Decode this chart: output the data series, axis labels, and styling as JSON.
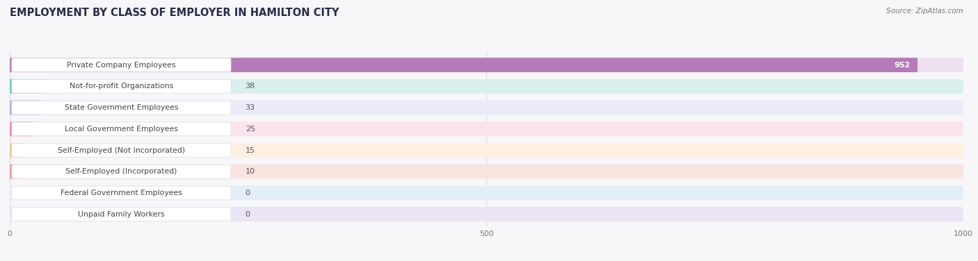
{
  "title": "EMPLOYMENT BY CLASS OF EMPLOYER IN HAMILTON CITY",
  "source": "Source: ZipAtlas.com",
  "categories": [
    "Private Company Employees",
    "Not-for-profit Organizations",
    "State Government Employees",
    "Local Government Employees",
    "Self-Employed (Not Incorporated)",
    "Self-Employed (Incorporated)",
    "Federal Government Employees",
    "Unpaid Family Workers"
  ],
  "values": [
    952,
    38,
    33,
    25,
    15,
    10,
    0,
    0
  ],
  "bar_colors": [
    "#b57ab8",
    "#68c9c4",
    "#a8aedd",
    "#f088aa",
    "#f0c490",
    "#e89890",
    "#a0c4e8",
    "#c0b4dc"
  ],
  "bar_bg_colors": [
    "#ede0f0",
    "#daf0ee",
    "#eaebf7",
    "#fce4ee",
    "#fdf0e0",
    "#fae4e0",
    "#e4eef8",
    "#eae4f4"
  ],
  "xlim": [
    0,
    1000
  ],
  "xticks": [
    0,
    500,
    1000
  ],
  "background_color": "#f7f7fa",
  "title_color": "#2a2a4a",
  "title_fontsize": 10.5,
  "bar_height": 0.68,
  "label_color": "#444444",
  "value_color_inside": "#ffffff",
  "value_color_outside": "#555555",
  "grid_color": "#d8d8e0",
  "tick_color": "#777777"
}
